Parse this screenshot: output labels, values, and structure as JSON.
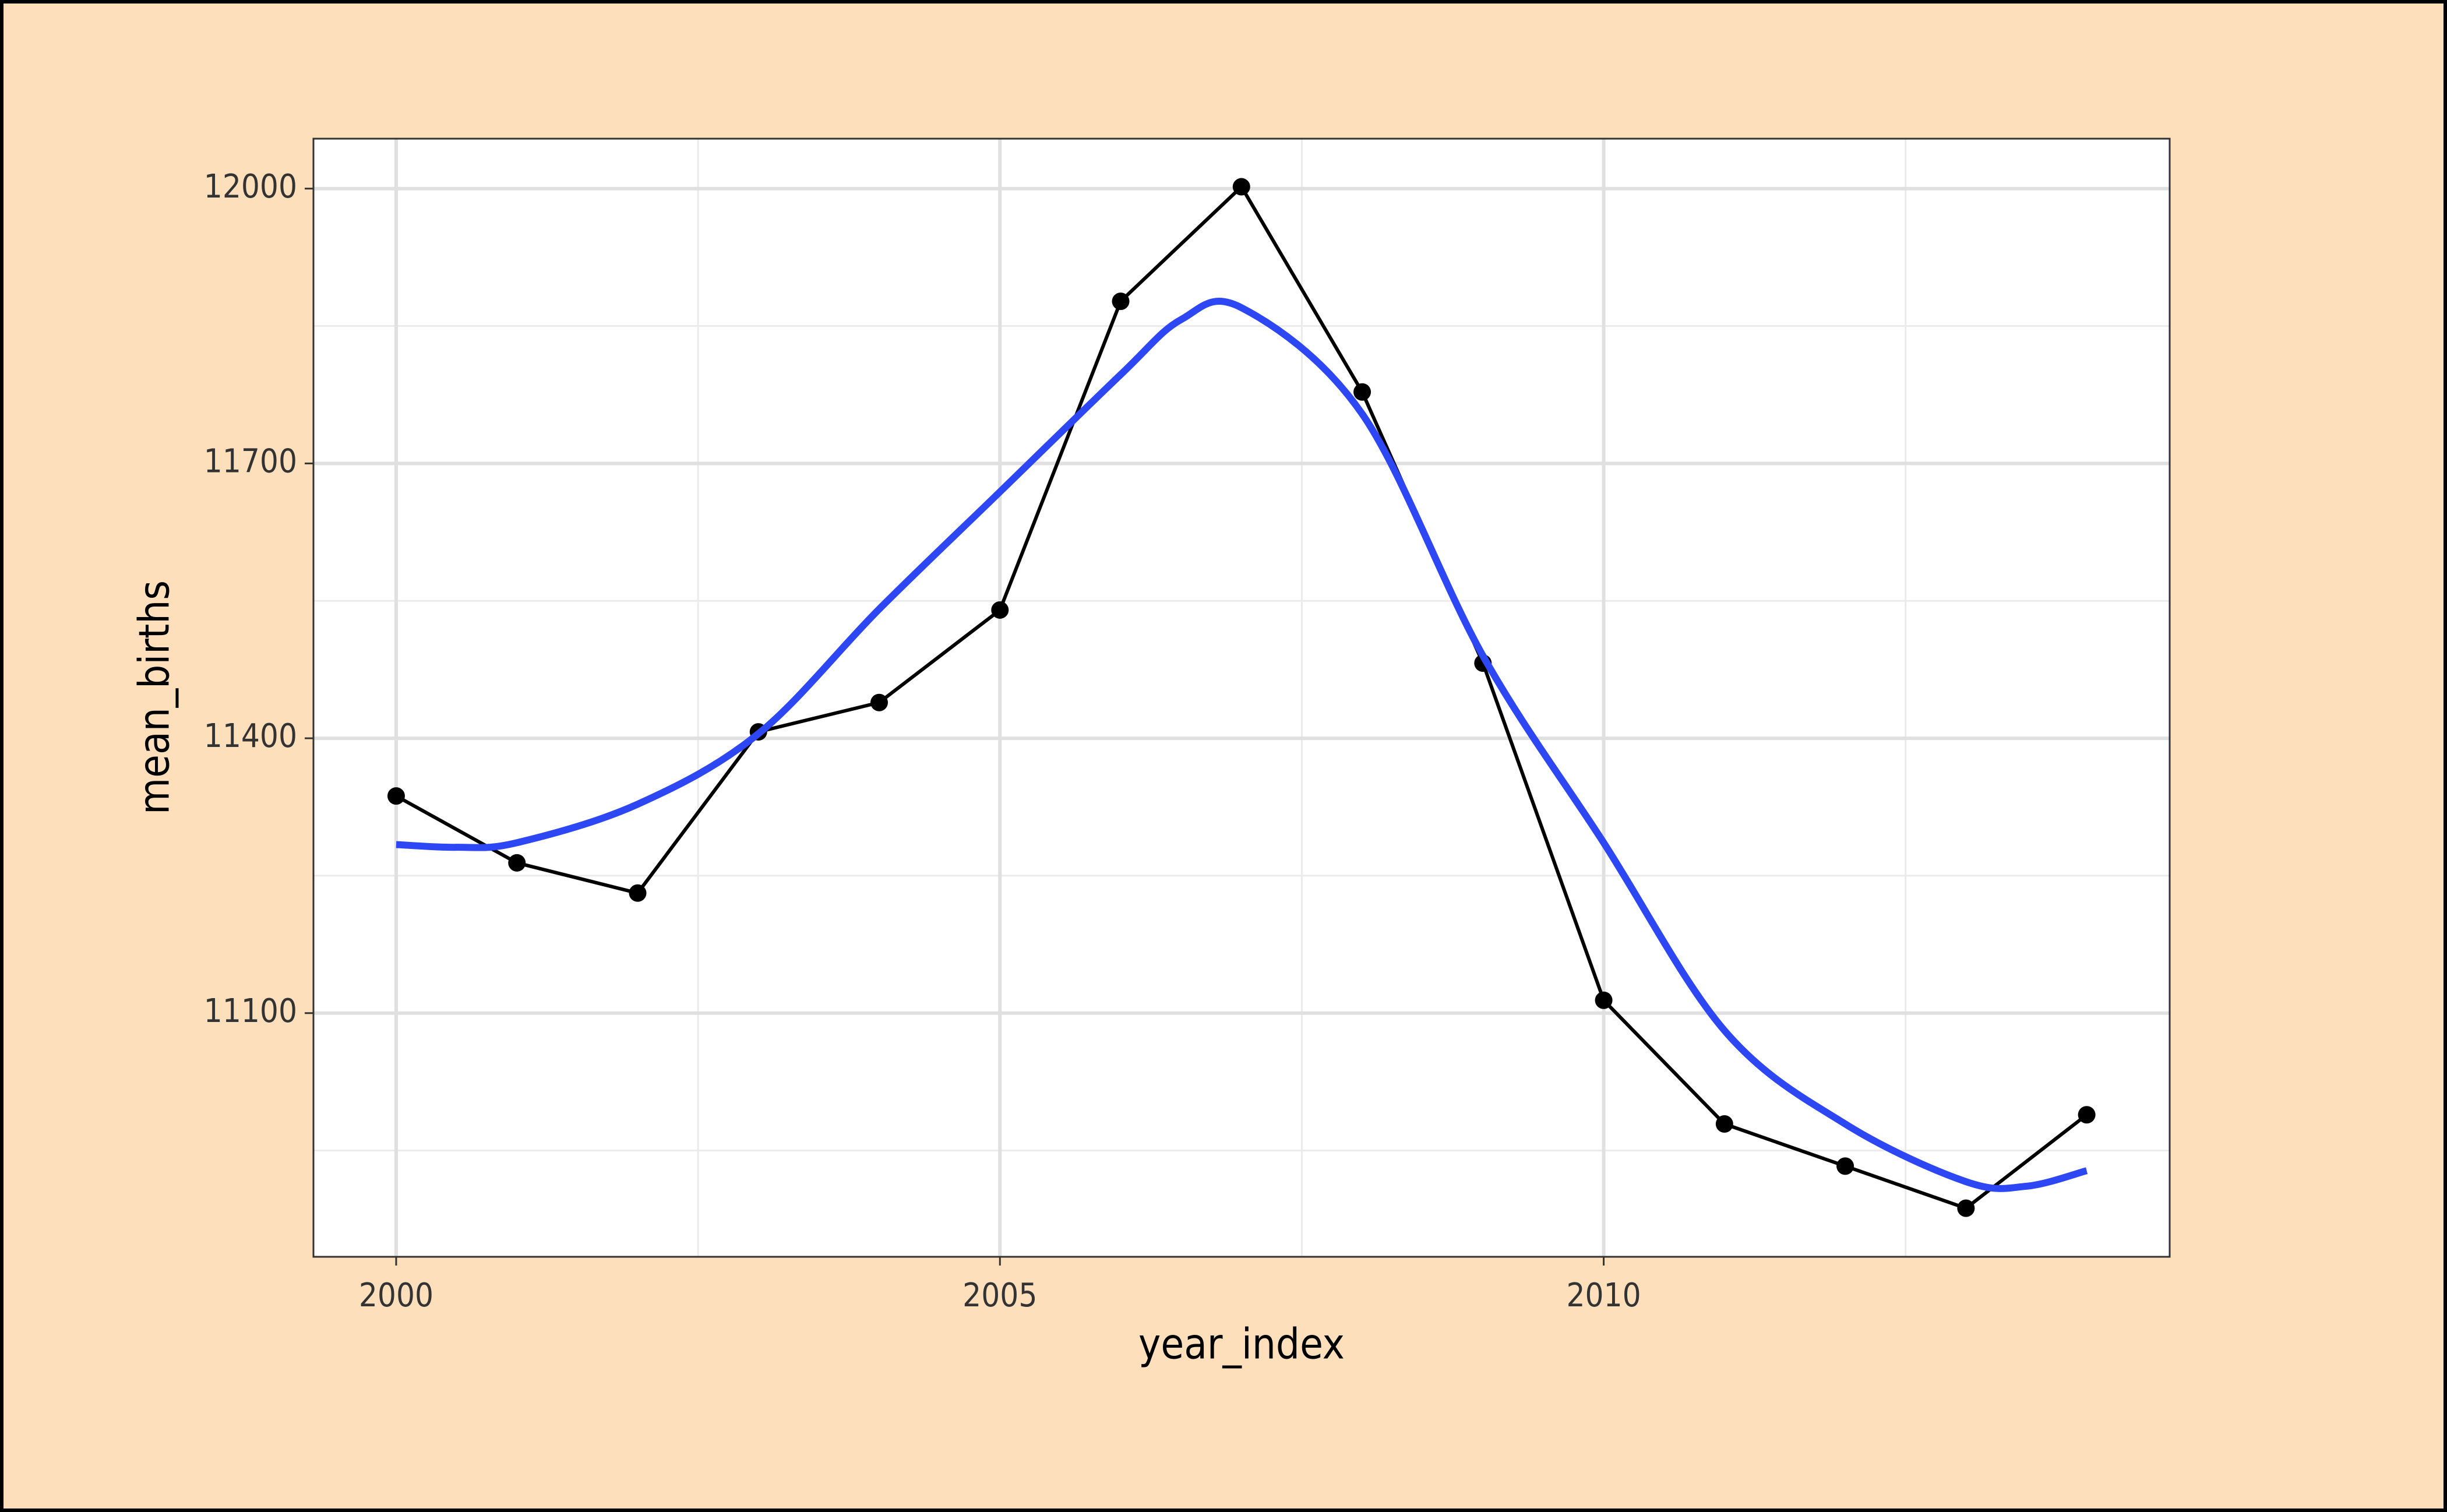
{
  "chart_data": {
    "type": "line",
    "x_label": "year_index",
    "y_label": "mean_births",
    "x": [
      2000,
      2001,
      2002,
      2003,
      2004,
      2005,
      2006,
      2007,
      2008,
      2009,
      2010,
      2011,
      2012,
      2013,
      2014
    ],
    "series": [
      {
        "color": "#000000",
        "markers": true,
        "values": [
          11337,
          11264,
          11231,
          11407,
          11439,
          11540,
          11877,
          12002,
          11778,
          11482,
          11114,
          10979,
          10933,
          10887,
          10989
        ]
      },
      {
        "color": "#2e47f5",
        "smooth": true,
        "x": [
          2000,
          2000.5,
          2001,
          2002,
          2003,
          2004,
          2005,
          2006,
          2006.5,
          2007,
          2008,
          2009,
          2010,
          2011,
          2012,
          2013,
          2013.5,
          2014
        ],
        "values": [
          11284,
          11281,
          11286,
          11328,
          11405,
          11541,
          11669,
          11797,
          11857,
          11870,
          11754,
          11490,
          11286,
          11081,
          10979,
          10916,
          10911,
          10928
        ]
      }
    ],
    "xlim": [
      1999.315,
      2014.687
    ],
    "ylim": [
      10834,
      12054.5
    ],
    "xticks": [
      2000,
      2005,
      2010
    ],
    "yticks": [
      11100,
      11400,
      11700,
      12000
    ],
    "x_minor_grid": [
      2002.5,
      2007.5,
      2012.5
    ],
    "y_minor_grid": [
      10950,
      11250,
      11550,
      11850
    ],
    "grid": true
  }
}
